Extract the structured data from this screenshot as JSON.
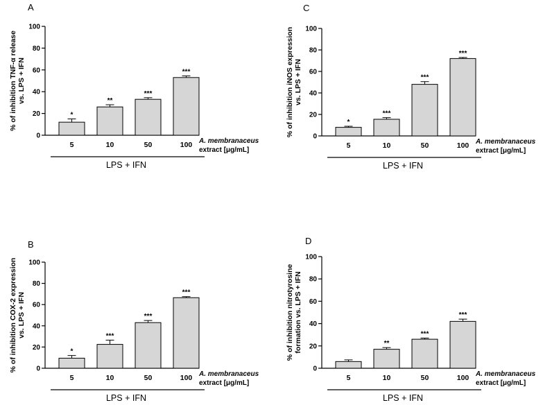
{
  "chart_data": [
    {
      "type": "bar",
      "panel": "A",
      "categories": [
        "5",
        "10",
        "50",
        "100"
      ],
      "values": [
        12,
        26,
        33,
        53
      ],
      "errors": [
        3,
        2,
        1.5,
        1.5
      ],
      "significance": [
        "*",
        "**",
        "***",
        "***"
      ],
      "ylabel_line1": "% of inhibition TNF-α release",
      "ylabel_line2": "vs. LPS + IFN",
      "xlabel_line1": "A. membranaceus",
      "xlabel_line2": "extract [μg/mL]",
      "group_label": "LPS + IFN",
      "ylim": [
        0,
        100
      ],
      "yticks": [
        "0",
        "20",
        "40",
        "60",
        "80",
        "100"
      ]
    },
    {
      "type": "bar",
      "panel": "C",
      "categories": [
        "5",
        "10",
        "50",
        "100"
      ],
      "values": [
        8,
        15.5,
        48,
        72
      ],
      "errors": [
        1,
        1.5,
        2.5,
        1
      ],
      "significance": [
        "*",
        "***",
        "***",
        "***"
      ],
      "ylabel_line1": "% of inhibition iNOS expression",
      "ylabel_line2": "vs. LPS + IFN",
      "xlabel_line1": "A. membranaceus",
      "xlabel_line2": "extract [μg/mL]",
      "group_label": "LPS + IFN",
      "ylim": [
        0,
        100
      ],
      "yticks": [
        "0",
        "20",
        "40",
        "60",
        "80",
        "100"
      ]
    },
    {
      "type": "bar",
      "panel": "B",
      "categories": [
        "5",
        "10",
        "50",
        "100"
      ],
      "values": [
        9.5,
        22.5,
        43,
        66.5
      ],
      "errors": [
        2.5,
        4,
        2,
        1
      ],
      "significance": [
        "*",
        "***",
        "***",
        "***"
      ],
      "ylabel_line1": "% of inhibition COX-2 expression",
      "ylabel_line2": "vs. LPS + IFN",
      "xlabel_line1": "A. membranaceus",
      "xlabel_line2": "extract [μg/mL]",
      "group_label": "LPS + IFN",
      "ylim": [
        0,
        100
      ],
      "yticks": [
        "0",
        "20",
        "40",
        "60",
        "80",
        "100"
      ]
    },
    {
      "type": "bar",
      "panel": "D",
      "categories": [
        "5",
        "10",
        "50",
        "100"
      ],
      "values": [
        6,
        17,
        26,
        42
      ],
      "errors": [
        1.5,
        1.5,
        1,
        2
      ],
      "significance": [
        "",
        "**",
        "***",
        "***"
      ],
      "ylabel_line1": "% of inhibition nitrotyrosine",
      "ylabel_line2": "formation vs. LPS + IFN",
      "xlabel_line1": "A. membranaceus",
      "xlabel_line2": "extract [μg/mL]",
      "group_label": "LPS + IFN",
      "ylim": [
        0,
        100
      ],
      "yticks": [
        "0",
        "20",
        "40",
        "60",
        "80",
        "100"
      ]
    }
  ]
}
